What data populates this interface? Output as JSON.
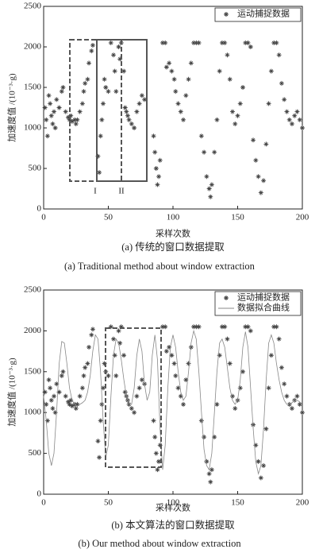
{
  "chart_data": [
    {
      "type": "scatter",
      "x_label": "采样次数",
      "y_label": "加速度值 /(10⁻³·g)",
      "caption": "(a) 传统的窗口数据提取",
      "caption_en": "(a) Traditional method about window extraction",
      "xlim": [
        0,
        200
      ],
      "xticks": [
        0,
        50,
        100,
        150,
        200
      ],
      "ylim": [
        0,
        2500
      ],
      "yticks": [
        0,
        500,
        1000,
        1500,
        2000,
        2500
      ],
      "legend": "upper right",
      "annotations": [
        "I",
        "II"
      ],
      "series": [
        {
          "name": "运动捕捉数据",
          "color": "#444444",
          "style": "marker",
          "x": [
            1,
            2,
            3,
            4,
            5,
            6,
            7,
            8,
            9,
            10,
            12,
            14,
            15,
            17,
            19,
            20,
            21,
            22,
            24,
            25,
            26,
            28,
            30,
            31,
            32,
            34,
            35,
            37,
            38,
            42,
            43,
            44,
            45,
            46,
            47,
            48,
            50,
            52,
            54,
            55,
            56,
            58,
            59,
            60,
            62,
            63,
            64,
            65,
            66,
            68,
            70,
            72,
            74,
            76,
            78,
            85,
            86,
            87,
            88,
            89,
            90,
            92,
            94,
            95,
            97,
            99,
            101,
            102,
            104,
            106,
            108,
            110,
            112,
            114,
            116,
            118,
            120,
            122,
            124,
            126,
            128,
            129,
            130,
            132,
            134,
            136,
            138,
            140,
            142,
            144,
            146,
            148,
            150,
            152,
            154,
            156,
            158,
            160,
            162,
            164,
            166,
            168,
            170,
            172,
            174,
            176,
            178,
            180,
            182,
            184,
            186,
            188,
            190,
            192,
            194,
            196,
            198,
            200
          ],
          "values": [
            1250,
            1100,
            900,
            1400,
            1300,
            1150,
            1050,
            1200,
            1000,
            1350,
            1250,
            1450,
            1500,
            1200,
            1130,
            1100,
            1150,
            1080,
            1100,
            1050,
            1100,
            1200,
            1300,
            1450,
            1550,
            1600,
            1800,
            1950,
            2020,
            650,
            450,
            900,
            1100,
            1300,
            1600,
            1500,
            1450,
            2050,
            1900,
            1700,
            1450,
            2000,
            1850,
            2050,
            1700,
            1250,
            1200,
            1150,
            1100,
            1050,
            1000,
            1200,
            1300,
            1400,
            1350,
            900,
            700,
            500,
            300,
            400,
            600,
            2050,
            2050,
            1750,
            1800,
            1700,
            1600,
            1450,
            1300,
            1200,
            1100,
            1400,
            1600,
            1800,
            2050,
            2050,
            2050,
            900,
            700,
            400,
            250,
            150,
            300,
            700,
            1100,
            1700,
            2050,
            2050,
            1900,
            1600,
            1200,
            1050,
            1150,
            1300,
            1500,
            2050,
            2050,
            2000,
            850,
            600,
            400,
            200,
            350,
            800,
            1300,
            1700,
            2050,
            2050,
            1900,
            1550,
            1350,
            1200,
            1100,
            1050,
            1150,
            1200,
            1100,
            1000
          ]
        }
      ]
    },
    {
      "type": "scatter",
      "x_label": "采样次数",
      "y_label": "加速度值 /(10⁻³·g)",
      "caption": "(b) 本文算法的窗口数据提取",
      "caption_en": "(b) Our method about window extraction",
      "xlim": [
        0,
        200
      ],
      "xticks": [
        0,
        50,
        100,
        150,
        200
      ],
      "ylim": [
        0,
        2500
      ],
      "yticks": [
        0,
        500,
        1000,
        1500,
        2000,
        2500
      ],
      "legend": "upper right",
      "series": [
        {
          "name": "运动捕捉数据",
          "color": "#444444",
          "style": "marker",
          "x": [
            1,
            2,
            3,
            4,
            5,
            6,
            7,
            8,
            9,
            10,
            12,
            14,
            15,
            17,
            19,
            20,
            21,
            22,
            24,
            25,
            26,
            28,
            30,
            31,
            32,
            34,
            35,
            37,
            38,
            42,
            43,
            44,
            45,
            46,
            47,
            48,
            50,
            52,
            54,
            55,
            56,
            58,
            59,
            60,
            62,
            63,
            64,
            65,
            66,
            68,
            70,
            72,
            74,
            76,
            78,
            85,
            86,
            87,
            88,
            89,
            90,
            92,
            94,
            95,
            97,
            99,
            101,
            102,
            104,
            106,
            108,
            110,
            112,
            114,
            116,
            118,
            120,
            122,
            124,
            126,
            128,
            129,
            130,
            132,
            134,
            136,
            138,
            140,
            142,
            144,
            146,
            148,
            150,
            152,
            154,
            156,
            158,
            160,
            162,
            164,
            166,
            168,
            170,
            172,
            174,
            176,
            178,
            180,
            182,
            184,
            186,
            188,
            190,
            192,
            194,
            196,
            198,
            200
          ],
          "values": [
            1250,
            1100,
            900,
            1400,
            1300,
            1150,
            1050,
            1200,
            1000,
            1350,
            1250,
            1450,
            1500,
            1200,
            1130,
            1100,
            1150,
            1080,
            1100,
            1050,
            1100,
            1200,
            1300,
            1450,
            1550,
            1600,
            1800,
            1950,
            2020,
            650,
            450,
            900,
            1100,
            1300,
            1600,
            1500,
            1450,
            2050,
            1900,
            1700,
            1450,
            2000,
            1850,
            2050,
            1700,
            1250,
            1200,
            1150,
            1100,
            1050,
            1000,
            1200,
            1300,
            1400,
            1350,
            900,
            700,
            500,
            300,
            400,
            600,
            2050,
            2050,
            1750,
            1800,
            1700,
            1600,
            1450,
            1300,
            1200,
            1100,
            1400,
            1600,
            1800,
            2050,
            2050,
            2050,
            900,
            700,
            400,
            250,
            150,
            300,
            700,
            1100,
            1700,
            2050,
            2050,
            1900,
            1600,
            1200,
            1050,
            1150,
            1300,
            1500,
            2050,
            2050,
            2000,
            850,
            600,
            400,
            200,
            350,
            800,
            1300,
            1700,
            2050,
            2050,
            1900,
            1550,
            1350,
            1200,
            1100,
            1050,
            1150,
            1200,
            1100,
            1000
          ]
        },
        {
          "name": "数据拟合曲线",
          "color": "#888888",
          "style": "line",
          "x": [
            0,
            2,
            4,
            6,
            8,
            10,
            12,
            14,
            16,
            18,
            20,
            22,
            24,
            26,
            28,
            30,
            32,
            34,
            36,
            38,
            40,
            42,
            44,
            46,
            48,
            50,
            52,
            54,
            56,
            58,
            60,
            62,
            64,
            66,
            68,
            70,
            72,
            74,
            76,
            78,
            80,
            82,
            84,
            86,
            88,
            90,
            92,
            94,
            96,
            98,
            100,
            102,
            104,
            106,
            108,
            110,
            112,
            114,
            116,
            118,
            120,
            122,
            124,
            126,
            128,
            130,
            132,
            134,
            136,
            138,
            140,
            142,
            144,
            146,
            148,
            150,
            152,
            154,
            156,
            158,
            160,
            162,
            164,
            166,
            168,
            170,
            172,
            174,
            176,
            178,
            180,
            182,
            184,
            186,
            188,
            190,
            192,
            194,
            196,
            198,
            200
          ],
          "values": [
            1200,
            900,
            500,
            350,
            500,
            1000,
            1600,
            1870,
            1850,
            1600,
            1300,
            1150,
            1100,
            1080,
            1100,
            1120,
            1150,
            1250,
            1450,
            1750,
            1950,
            1900,
            1500,
            900,
            450,
            600,
            1200,
            1700,
            1900,
            1850,
            1650,
            1400,
            1200,
            1100,
            1100,
            1300,
            1700,
            1900,
            1750,
            1350,
            1150,
            1250,
            1700,
            1950,
            1650,
            800,
            300,
            600,
            1300,
            1800,
            1950,
            1800,
            1500,
            1250,
            1150,
            1200,
            1500,
            1850,
            2000,
            1900,
            1500,
            1000,
            550,
            350,
            300,
            500,
            1000,
            1500,
            1850,
            1900,
            1800,
            1550,
            1300,
            1150,
            1100,
            1150,
            1400,
            1800,
            1990,
            1800,
            1300,
            800,
            400,
            250,
            350,
            800,
            1400,
            1850,
            1950,
            1850,
            1600,
            1400,
            1250,
            1150,
            1100,
            1100,
            1120,
            1150,
            1150,
            1130,
            1100
          ]
        }
      ]
    }
  ]
}
